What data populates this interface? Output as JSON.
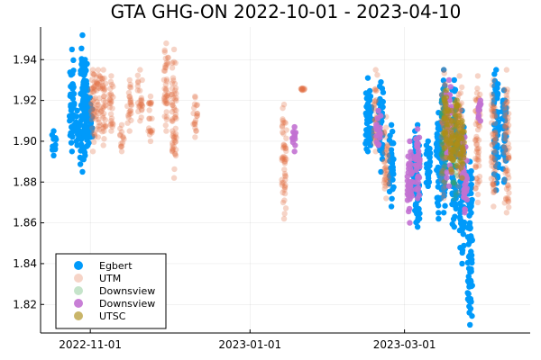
{
  "chart_data": {
    "type": "scatter",
    "title": "GTA GHG-ON 2022-10-01 - 2023-04-10",
    "xlabel": "",
    "ylabel": "",
    "xlim": [
      "2022-10-13",
      "2023-04-18"
    ],
    "ylim": [
      1.806,
      1.956
    ],
    "x_ticks": [
      "2022-11-01",
      "2023-01-01",
      "2023-03-01"
    ],
    "y_ticks": [
      1.82,
      1.84,
      1.86,
      1.88,
      1.9,
      1.92,
      1.94
    ],
    "y_tick_labels": [
      "1.82",
      "1.84",
      "1.86",
      "1.88",
      "1.90",
      "1.92",
      "1.94"
    ],
    "grid": true,
    "legend_position": "bottom-left",
    "series": [
      {
        "name": "Egbert",
        "color": "#009AFA",
        "opacity": 1.0,
        "clusters": [
          {
            "x": "2022-10-18",
            "y_min": 1.893,
            "y_max": 1.905
          },
          {
            "x": "2022-10-25",
            "y_min": 1.895,
            "y_max": 1.945
          },
          {
            "x": "2022-10-27",
            "y_min": 1.898,
            "y_max": 1.915
          },
          {
            "x": "2022-10-29",
            "y_min": 1.885,
            "y_max": 1.952
          },
          {
            "x": "2022-10-30",
            "y_min": 1.893,
            "y_max": 1.94
          },
          {
            "x": "2022-10-31",
            "y_min": 1.898,
            "y_max": 1.925
          },
          {
            "x": "2022-11-01",
            "y_min": 1.902,
            "y_max": 1.918
          },
          {
            "x": "2023-02-15",
            "y_min": 1.895,
            "y_max": 1.931
          },
          {
            "x": "2023-02-16",
            "y_min": 1.898,
            "y_max": 1.922
          },
          {
            "x": "2023-02-20",
            "y_min": 1.885,
            "y_max": 1.929
          },
          {
            "x": "2023-02-24",
            "y_min": 1.868,
            "y_max": 1.908
          },
          {
            "x": "2023-03-05",
            "y_min": 1.866,
            "y_max": 1.905
          },
          {
            "x": "2023-03-06",
            "y_min": 1.858,
            "y_max": 1.908
          },
          {
            "x": "2023-03-10",
            "y_min": 1.878,
            "y_max": 1.9
          },
          {
            "x": "2023-03-14",
            "y_min": 1.862,
            "y_max": 1.914
          },
          {
            "x": "2023-03-16",
            "y_min": 1.865,
            "y_max": 1.935
          },
          {
            "x": "2023-03-20",
            "y_min": 1.858,
            "y_max": 1.93
          },
          {
            "x": "2023-03-23",
            "y_min": 1.84,
            "y_max": 1.915
          },
          {
            "x": "2023-03-26",
            "y_min": 1.81,
            "y_max": 1.89
          },
          {
            "x": "2023-04-05",
            "y_min": 1.876,
            "y_max": 1.935
          },
          {
            "x": "2023-04-08",
            "y_min": 1.88,
            "y_max": 1.925
          }
        ]
      },
      {
        "name": "UTM",
        "color": "#E26F46",
        "opacity": 0.3,
        "clusters": [
          {
            "x": "2022-11-02",
            "y_min": 1.895,
            "y_max": 1.935
          },
          {
            "x": "2022-11-04",
            "y_min": 1.902,
            "y_max": 1.935
          },
          {
            "x": "2022-11-06",
            "y_min": 1.898,
            "y_max": 1.935
          },
          {
            "x": "2022-11-09",
            "y_min": 1.905,
            "y_max": 1.932
          },
          {
            "x": "2022-11-13",
            "y_min": 1.895,
            "y_max": 1.908
          },
          {
            "x": "2022-11-16",
            "y_min": 1.905,
            "y_max": 1.93
          },
          {
            "x": "2022-11-20",
            "y_min": 1.91,
            "y_max": 1.935
          },
          {
            "x": "2022-11-24",
            "y_min": 1.9,
            "y_max": 1.922
          },
          {
            "x": "2022-11-30",
            "y_min": 1.905,
            "y_max": 1.948
          },
          {
            "x": "2022-12-03",
            "y_min": 1.882,
            "y_max": 1.945
          },
          {
            "x": "2022-12-11",
            "y_min": 1.902,
            "y_max": 1.922
          },
          {
            "x": "2023-01-14",
            "y_min": 1.862,
            "y_max": 1.918
          },
          {
            "x": "2023-01-21",
            "y_min": 1.925,
            "y_max": 1.926
          },
          {
            "x": "2023-02-18",
            "y_min": 1.895,
            "y_max": 1.935
          },
          {
            "x": "2023-02-22",
            "y_min": 1.872,
            "y_max": 1.912
          },
          {
            "x": "2023-03-16",
            "y_min": 1.872,
            "y_max": 1.935
          },
          {
            "x": "2023-03-22",
            "y_min": 1.875,
            "y_max": 1.932
          },
          {
            "x": "2023-03-29",
            "y_min": 1.87,
            "y_max": 1.932
          },
          {
            "x": "2023-04-04",
            "y_min": 1.868,
            "y_max": 1.93
          },
          {
            "x": "2023-04-09",
            "y_min": 1.865,
            "y_max": 1.935
          }
        ]
      },
      {
        "name": "Downsview",
        "color": "#3EA44E",
        "opacity": 0.25,
        "clusters": [
          {
            "x": "2023-03-16",
            "y_min": 1.88,
            "y_max": 1.925
          },
          {
            "x": "2023-03-20",
            "y_min": 1.872,
            "y_max": 1.92
          }
        ]
      },
      {
        "name": "Downsview",
        "color": "#C271D2",
        "opacity": 0.9,
        "clusters": [
          {
            "x": "2023-01-18",
            "y_min": 1.895,
            "y_max": 1.907
          },
          {
            "x": "2023-02-19",
            "y_min": 1.898,
            "y_max": 1.915
          },
          {
            "x": "2023-03-03",
            "y_min": 1.86,
            "y_max": 1.9
          },
          {
            "x": "2023-03-06",
            "y_min": 1.872,
            "y_max": 1.906
          },
          {
            "x": "2023-03-18",
            "y_min": 1.878,
            "y_max": 1.93
          },
          {
            "x": "2023-03-24",
            "y_min": 1.865,
            "y_max": 1.902
          },
          {
            "x": "2023-03-30",
            "y_min": 1.91,
            "y_max": 1.92
          }
        ]
      },
      {
        "name": "UTSC",
        "color": "#AC8D18",
        "opacity": 0.65,
        "clusters": [
          {
            "x": "2023-03-17",
            "y_min": 1.892,
            "y_max": 1.925
          },
          {
            "x": "2023-03-19",
            "y_min": 1.885,
            "y_max": 1.915
          },
          {
            "x": "2023-03-21",
            "y_min": 1.888,
            "y_max": 1.92
          },
          {
            "x": "2023-03-23",
            "y_min": 1.882,
            "y_max": 1.91
          }
        ]
      }
    ]
  }
}
